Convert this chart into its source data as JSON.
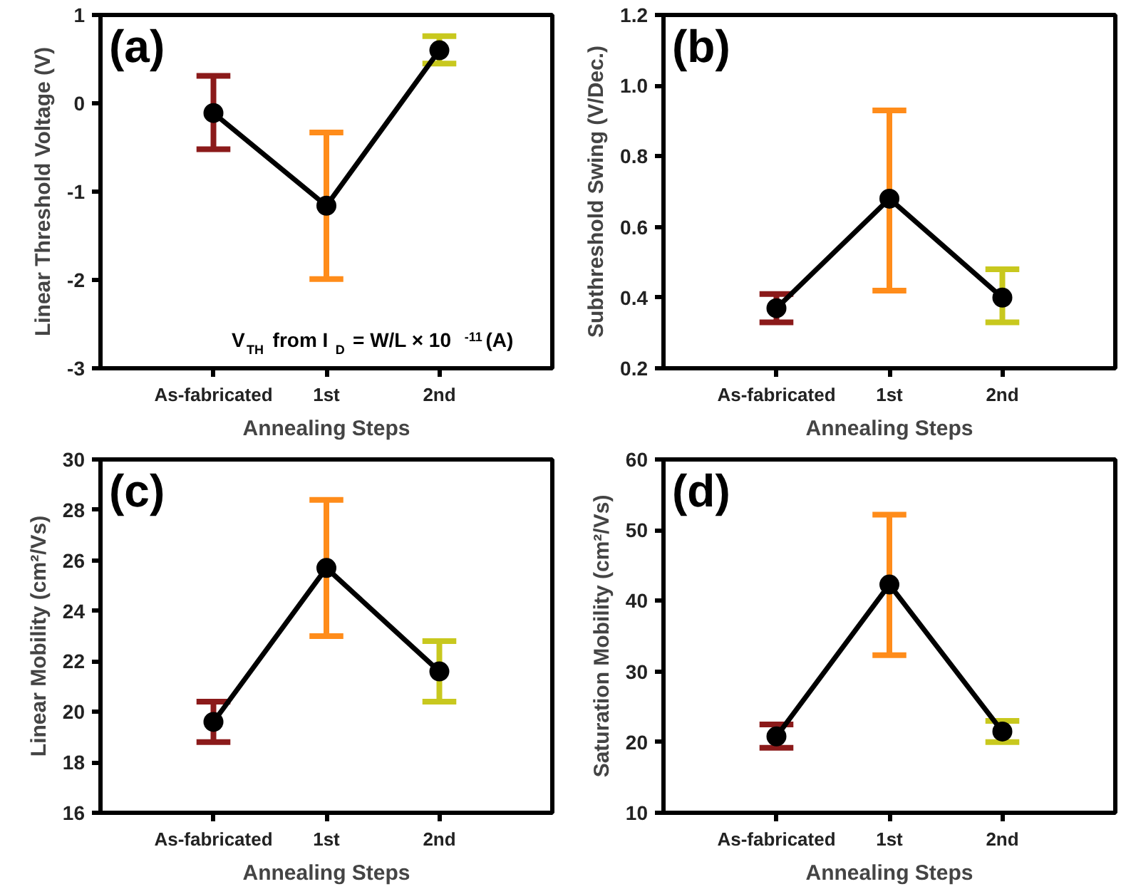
{
  "chart_data": [
    {
      "type": "line",
      "title": "(a)",
      "xlabel": "Annealing Steps",
      "ylabel": "Linear Threshold Voltage (V)",
      "categories": [
        "As-fabricated",
        "1st",
        "2nd"
      ],
      "ylim": [
        -3,
        1
      ],
      "yticks": [
        -3,
        -2,
        -1,
        0,
        1
      ],
      "marker": "circle",
      "line_style": "solid",
      "grid": false,
      "series": [
        {
          "color": "#000000",
          "colors": [
            "#8b1a1a",
            "#ff8c1a",
            "#c8c81e"
          ],
          "values": [
            -0.11,
            -1.16,
            0.6
          ],
          "errors": [
            [
              -0.52,
              0.31
            ],
            [
              -1.99,
              -0.33
            ],
            [
              0.45,
              0.76
            ]
          ]
        }
      ],
      "annotations": [
        "V$_{TH}$ from I$_{D}$ = W/L × 10$^{-11}$(A)"
      ]
    },
    {
      "type": "line",
      "title": "(b)",
      "xlabel": "Annealing Steps",
      "ylabel": "Subthreshold Swing (V/Dec.)",
      "categories": [
        "As-fabricated",
        "1st",
        "2nd"
      ],
      "ylim": [
        0.2,
        1.2
      ],
      "yticks": [
        {
          "value": 0.2,
          "label": "0.2"
        },
        {
          "value": 0.4,
          "label": "0.4"
        },
        {
          "value": 0.6,
          "label": "0.6"
        },
        {
          "value": 0.8,
          "label": "0.8"
        },
        {
          "value": 1.0,
          "label": "1.0"
        },
        {
          "value": 1.2,
          "label": "1.2"
        }
      ],
      "marker": "circle",
      "line_style": "solid",
      "grid": false,
      "series": [
        {
          "color": "#000000",
          "colors": [
            "#8b1a1a",
            "#ff8c1a",
            "#c8c81e"
          ],
          "values": [
            0.37,
            0.68,
            0.4
          ],
          "errors": [
            [
              0.33,
              0.41
            ],
            [
              0.42,
              0.93
            ],
            [
              0.33,
              0.48
            ]
          ]
        }
      ]
    },
    {
      "type": "line",
      "title": "(c)",
      "xlabel": "Annealing Steps",
      "ylabel": "Linear Mobility (cm²/Vs)",
      "categories": [
        "As-fabricated",
        "1st",
        "2nd"
      ],
      "ylim": [
        16,
        30
      ],
      "yticks": [
        16,
        18,
        20,
        22,
        24,
        26,
        28,
        30
      ],
      "marker": "circle",
      "line_style": "solid",
      "grid": false,
      "series": [
        {
          "color": "#000000",
          "colors": [
            "#8b1a1a",
            "#ff8c1a",
            "#c8c81e"
          ],
          "values": [
            19.6,
            25.7,
            21.6
          ],
          "errors": [
            [
              18.8,
              20.4
            ],
            [
              23.0,
              28.4
            ],
            [
              20.4,
              22.8
            ]
          ]
        }
      ]
    },
    {
      "type": "line",
      "title": "(d)",
      "xlabel": "Annealing Steps",
      "ylabel": "Saturation Mobility (cm²/Vs)",
      "categories": [
        "As-fabricated",
        "1st",
        "2nd"
      ],
      "ylim": [
        10,
        60
      ],
      "yticks": [
        10,
        20,
        30,
        40,
        50,
        60
      ],
      "marker": "circle",
      "line_style": "solid",
      "grid": false,
      "series": [
        {
          "color": "#000000",
          "colors": [
            "#8b1a1a",
            "#ff8c1a",
            "#c8c81e"
          ],
          "values": [
            20.8,
            42.3,
            21.5
          ],
          "errors": [
            [
              19.2,
              22.5
            ],
            [
              32.3,
              52.2
            ],
            [
              20.0,
              23.0
            ]
          ]
        }
      ]
    }
  ]
}
